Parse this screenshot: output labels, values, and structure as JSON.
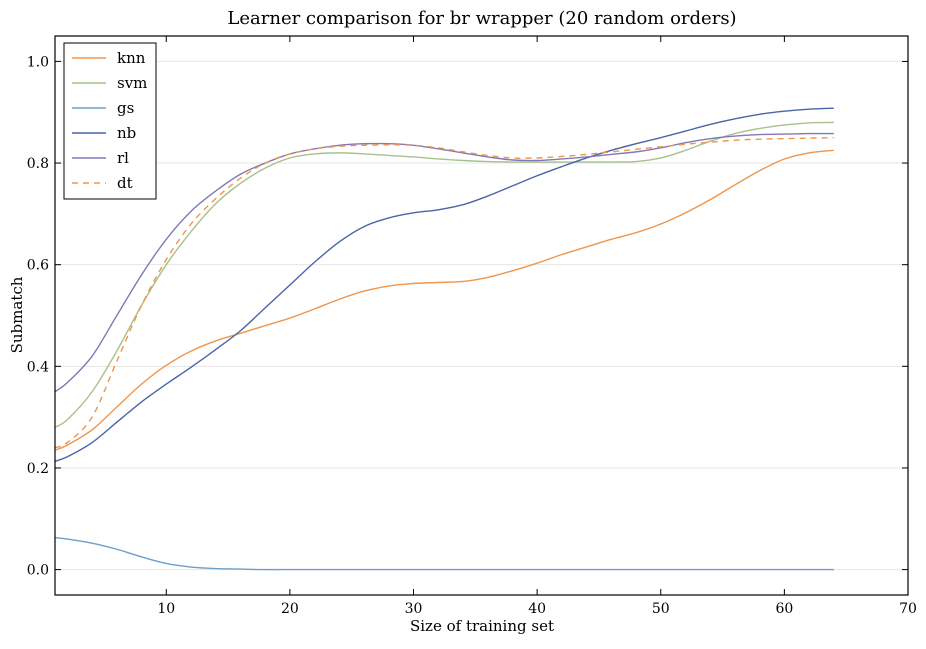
{
  "chart_data": {
    "type": "line",
    "title": "Learner comparison for br wrapper (20 random orders)",
    "xlabel": "Size of training set",
    "ylabel": "Submatch",
    "xlim": [
      1,
      70
    ],
    "ylim": [
      -0.05,
      1.05
    ],
    "xticks": [
      10,
      20,
      30,
      40,
      50,
      60,
      70
    ],
    "yticks": [
      0.0,
      0.2,
      0.4,
      0.6,
      0.8,
      1.0
    ],
    "xtick_labels": [
      "10",
      "20",
      "30",
      "40",
      "50",
      "60",
      "70"
    ],
    "ytick_labels": [
      "0.0",
      "0.2",
      "0.4",
      "0.6",
      "0.8",
      "1.0"
    ],
    "grid": "horizontal",
    "legend_position": "top-left",
    "x": [
      1,
      2,
      4,
      6,
      8,
      10,
      12,
      14,
      16,
      18,
      20,
      22,
      24,
      26,
      28,
      30,
      32,
      34,
      36,
      38,
      40,
      42,
      44,
      46,
      48,
      50,
      52,
      54,
      56,
      58,
      60,
      62,
      64
    ],
    "series": [
      {
        "name": "knn",
        "color": "#f0954b",
        "dash": "solid",
        "values": [
          0.235,
          0.245,
          0.275,
          0.32,
          0.365,
          0.402,
          0.43,
          0.45,
          0.465,
          0.48,
          0.495,
          0.513,
          0.532,
          0.548,
          0.558,
          0.563,
          0.565,
          0.567,
          0.575,
          0.588,
          0.603,
          0.62,
          0.635,
          0.65,
          0.663,
          0.68,
          0.702,
          0.728,
          0.757,
          0.785,
          0.808,
          0.82,
          0.825
        ]
      },
      {
        "name": "svm",
        "color": "#a8c18c",
        "dash": "solid",
        "values": [
          0.28,
          0.295,
          0.35,
          0.43,
          0.52,
          0.6,
          0.665,
          0.72,
          0.76,
          0.79,
          0.81,
          0.818,
          0.82,
          0.818,
          0.815,
          0.812,
          0.808,
          0.805,
          0.803,
          0.802,
          0.802,
          0.802,
          0.802,
          0.802,
          0.803,
          0.81,
          0.825,
          0.843,
          0.858,
          0.868,
          0.875,
          0.879,
          0.88
        ]
      },
      {
        "name": "gs",
        "color": "#6f9ec8",
        "dash": "solid",
        "values": [
          0.063,
          0.06,
          0.052,
          0.04,
          0.025,
          0.012,
          0.005,
          0.002,
          0.001,
          0.0,
          0.0,
          0.0,
          0.0,
          0.0,
          0.0,
          0.0,
          0.0,
          0.0,
          0.0,
          0.0,
          0.0,
          0.0,
          0.0,
          0.0,
          0.0,
          0.0,
          0.0,
          0.0,
          0.0,
          0.0,
          0.0,
          0.0,
          0.0
        ]
      },
      {
        "name": "nb",
        "color": "#4a64a8",
        "dash": "solid",
        "values": [
          0.213,
          0.222,
          0.25,
          0.29,
          0.33,
          0.365,
          0.398,
          0.433,
          0.47,
          0.515,
          0.56,
          0.605,
          0.645,
          0.675,
          0.692,
          0.702,
          0.708,
          0.718,
          0.735,
          0.755,
          0.775,
          0.793,
          0.81,
          0.825,
          0.838,
          0.85,
          0.863,
          0.876,
          0.887,
          0.896,
          0.902,
          0.906,
          0.908
        ]
      },
      {
        "name": "rl",
        "color": "#8078b8",
        "dash": "solid",
        "values": [
          0.35,
          0.368,
          0.42,
          0.5,
          0.58,
          0.65,
          0.705,
          0.745,
          0.778,
          0.8,
          0.818,
          0.828,
          0.835,
          0.838,
          0.838,
          0.835,
          0.828,
          0.82,
          0.812,
          0.806,
          0.805,
          0.808,
          0.812,
          0.817,
          0.822,
          0.83,
          0.84,
          0.848,
          0.853,
          0.856,
          0.857,
          0.858,
          0.858
        ]
      },
      {
        "name": "dt",
        "color": "#f0954b",
        "dash": "dashed",
        "values": [
          0.24,
          0.25,
          0.3,
          0.41,
          0.52,
          0.61,
          0.68,
          0.73,
          0.77,
          0.8,
          0.818,
          0.828,
          0.833,
          0.835,
          0.836,
          0.835,
          0.83,
          0.822,
          0.815,
          0.81,
          0.81,
          0.813,
          0.817,
          0.822,
          0.827,
          0.832,
          0.837,
          0.841,
          0.845,
          0.847,
          0.848,
          0.849,
          0.85
        ]
      }
    ]
  }
}
